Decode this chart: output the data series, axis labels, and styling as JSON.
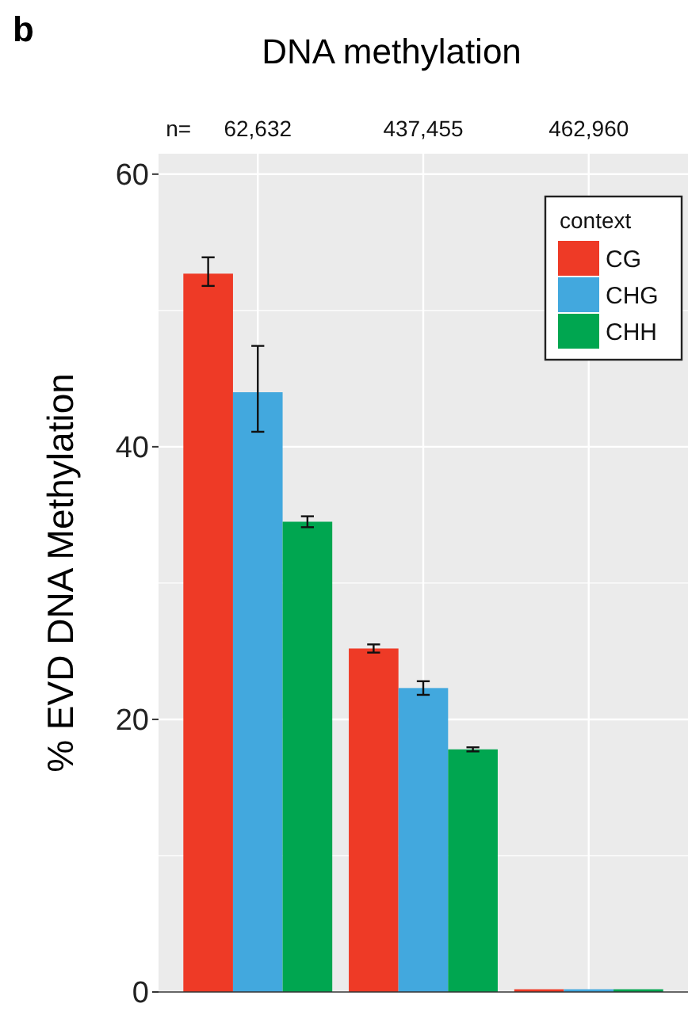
{
  "chart_data": {
    "type": "bar",
    "title": "DNA methylation",
    "ylabel": "% EVD DNA Methylation",
    "legend_title": "context",
    "legend": "top right",
    "grid": true,
    "categories": [
      "62,632",
      "437,455",
      "462,960"
    ],
    "annotations": [
      "b",
      "n="
    ],
    "ylim": [
      0,
      61.5
    ],
    "yticks": [
      0,
      {
        "value": 10,
        "label": null
      },
      20,
      {
        "value": 30,
        "label": null
      },
      40,
      {
        "value": 50,
        "label": null
      },
      60
    ],
    "series": [
      {
        "name": "CG",
        "color": "#ee3a26",
        "values": [
          52.7,
          25.2,
          0.2
        ],
        "errors": [
          [
            51.8,
            53.9
          ],
          [
            24.9,
            25.5
          ],
          null
        ]
      },
      {
        "name": "CHG",
        "color": "#42a8de",
        "values": [
          44,
          22.3,
          0.2
        ],
        "errors": [
          [
            41.1,
            47.4
          ],
          [
            21.8,
            22.8
          ],
          null
        ]
      },
      {
        "name": "CHH",
        "color": "#00a650",
        "values": [
          34.5,
          17.8,
          0.2
        ],
        "errors": [
          [
            34.1,
            34.9
          ],
          [
            17.65,
            17.95
          ],
          null
        ]
      }
    ]
  }
}
